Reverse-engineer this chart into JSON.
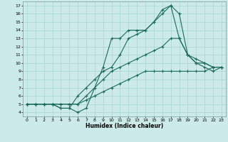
{
  "xlabel": "Humidex (Indice chaleur)",
  "background_color": "#cceae7",
  "grid_color": "#aad4d0",
  "line_color": "#1a6b5a",
  "xlim": [
    -0.5,
    23.5
  ],
  "ylim": [
    3.5,
    17.5
  ],
  "xticks": [
    0,
    1,
    2,
    3,
    4,
    5,
    6,
    7,
    8,
    9,
    10,
    11,
    12,
    13,
    14,
    15,
    16,
    17,
    18,
    19,
    20,
    21,
    22,
    23
  ],
  "yticks": [
    4,
    5,
    6,
    7,
    8,
    9,
    10,
    11,
    12,
    13,
    14,
    15,
    16,
    17
  ],
  "series": [
    {
      "x": [
        0,
        1,
        2,
        3,
        4,
        5,
        6,
        7,
        8,
        9,
        10,
        11,
        12,
        13,
        14,
        15,
        16,
        17,
        18,
        19,
        20,
        21,
        22,
        23
      ],
      "y": [
        5,
        5,
        5,
        5,
        5,
        5,
        5,
        5.5,
        6,
        6.5,
        7,
        7.5,
        8,
        8.5,
        9,
        9,
        9,
        9,
        9,
        9,
        9,
        9,
        9.5,
        9.5
      ]
    },
    {
      "x": [
        0,
        1,
        2,
        3,
        4,
        5,
        6,
        7,
        8,
        9,
        10,
        11,
        12,
        13,
        14,
        15,
        16,
        17,
        18,
        19,
        20,
        21,
        22,
        23
      ],
      "y": [
        5,
        5,
        5,
        5,
        5,
        5,
        5,
        6,
        7,
        8,
        9,
        9.5,
        10,
        10.5,
        11,
        11.5,
        12,
        13,
        13,
        11,
        10.5,
        10,
        9.5,
        9.5
      ]
    },
    {
      "x": [
        0,
        1,
        2,
        3,
        4,
        5,
        6,
        7,
        8,
        9,
        10,
        11,
        12,
        13,
        14,
        15,
        16,
        17,
        18,
        19,
        20,
        21,
        22,
        23
      ],
      "y": [
        5,
        5,
        5,
        5,
        4.5,
        4.5,
        4,
        4.5,
        7,
        9.5,
        13,
        13,
        14,
        14,
        14,
        15,
        16,
        17,
        13,
        11,
        10,
        10,
        9.5,
        9.5
      ]
    },
    {
      "x": [
        0,
        1,
        2,
        3,
        4,
        5,
        6,
        7,
        8,
        9,
        10,
        11,
        12,
        13,
        14,
        15,
        16,
        17,
        18,
        19,
        20,
        21,
        22,
        23
      ],
      "y": [
        5,
        5,
        5,
        5,
        4.5,
        4.5,
        6,
        7,
        8,
        9,
        9.5,
        11,
        13,
        13.5,
        14,
        15,
        16.5,
        17,
        16,
        11,
        10,
        9.5,
        9,
        9.5
      ]
    }
  ]
}
